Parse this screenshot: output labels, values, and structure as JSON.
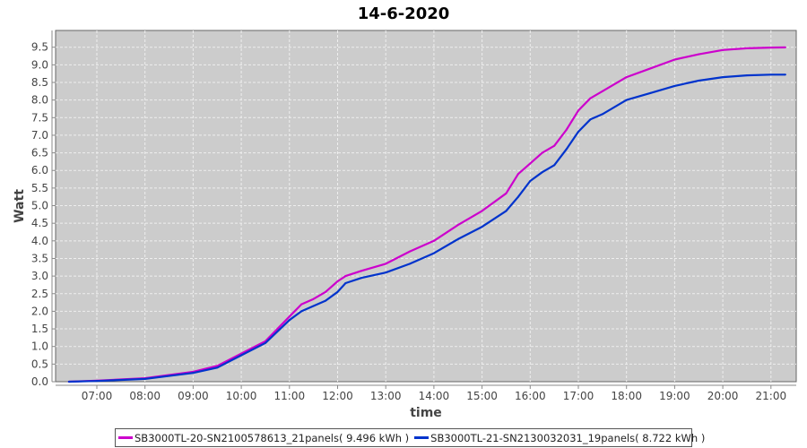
{
  "chart_data": {
    "type": "line",
    "title": "14-6-2020",
    "xlabel": "time",
    "ylabel": "Watt",
    "ylim": [
      0,
      9.5
    ],
    "yticks": [
      "0.0",
      "0.5",
      "1.0",
      "1.5",
      "2.0",
      "2.5",
      "3.0",
      "3.5",
      "4.0",
      "4.5",
      "5.0",
      "5.5",
      "6.0",
      "6.5",
      "7.0",
      "7.5",
      "8.0",
      "8.5",
      "9.0",
      "9.5"
    ],
    "xticks": [
      "07:00",
      "08:00",
      "09:00",
      "10:00",
      "11:00",
      "12:00",
      "13:00",
      "14:00",
      "15:00",
      "16:00",
      "17:00",
      "18:00",
      "19:00",
      "20:00",
      "21:00"
    ],
    "grid": true,
    "legend_position": "bottom",
    "background": "#cccccc",
    "series": [
      {
        "name": "SB3000TL-20-SN2100578613_21panels( 9.496 kWh )",
        "color": "#cc00cc",
        "x": [
          "06:25",
          "07:00",
          "08:00",
          "09:00",
          "09:30",
          "10:00",
          "10:30",
          "11:00",
          "11:15",
          "11:30",
          "11:45",
          "12:00",
          "12:10",
          "12:30",
          "13:00",
          "13:30",
          "14:00",
          "14:30",
          "15:00",
          "15:30",
          "15:45",
          "16:00",
          "16:15",
          "16:30",
          "16:45",
          "17:00",
          "17:15",
          "17:30",
          "18:00",
          "18:30",
          "19:00",
          "19:30",
          "20:00",
          "20:30",
          "21:00",
          "21:18"
        ],
        "y": [
          0.0,
          0.03,
          0.1,
          0.28,
          0.45,
          0.8,
          1.15,
          1.85,
          2.2,
          2.35,
          2.55,
          2.85,
          3.0,
          3.15,
          3.35,
          3.7,
          4.0,
          4.45,
          4.85,
          5.35,
          5.9,
          6.2,
          6.5,
          6.7,
          7.15,
          7.7,
          8.05,
          8.25,
          8.65,
          8.9,
          9.15,
          9.3,
          9.42,
          9.47,
          9.49,
          9.496
        ]
      },
      {
        "name": "SB3000TL-21-SN2130032031_19panels( 8.722 kWh )",
        "color": "#0033cc",
        "x": [
          "06:25",
          "07:00",
          "08:00",
          "09:00",
          "09:30",
          "10:00",
          "10:30",
          "11:00",
          "11:15",
          "11:30",
          "11:45",
          "12:00",
          "12:10",
          "12:30",
          "13:00",
          "13:30",
          "14:00",
          "14:30",
          "15:00",
          "15:30",
          "15:45",
          "16:00",
          "16:15",
          "16:30",
          "16:45",
          "17:00",
          "17:15",
          "17:30",
          "18:00",
          "18:30",
          "19:00",
          "19:30",
          "20:00",
          "20:30",
          "21:00",
          "21:18"
        ],
        "y": [
          0.0,
          0.02,
          0.08,
          0.25,
          0.4,
          0.75,
          1.1,
          1.75,
          2.0,
          2.15,
          2.3,
          2.55,
          2.8,
          2.95,
          3.1,
          3.35,
          3.65,
          4.05,
          4.4,
          4.85,
          5.25,
          5.7,
          5.95,
          6.15,
          6.6,
          7.1,
          7.45,
          7.6,
          8.0,
          8.2,
          8.4,
          8.55,
          8.65,
          8.7,
          8.72,
          8.722
        ]
      }
    ]
  }
}
